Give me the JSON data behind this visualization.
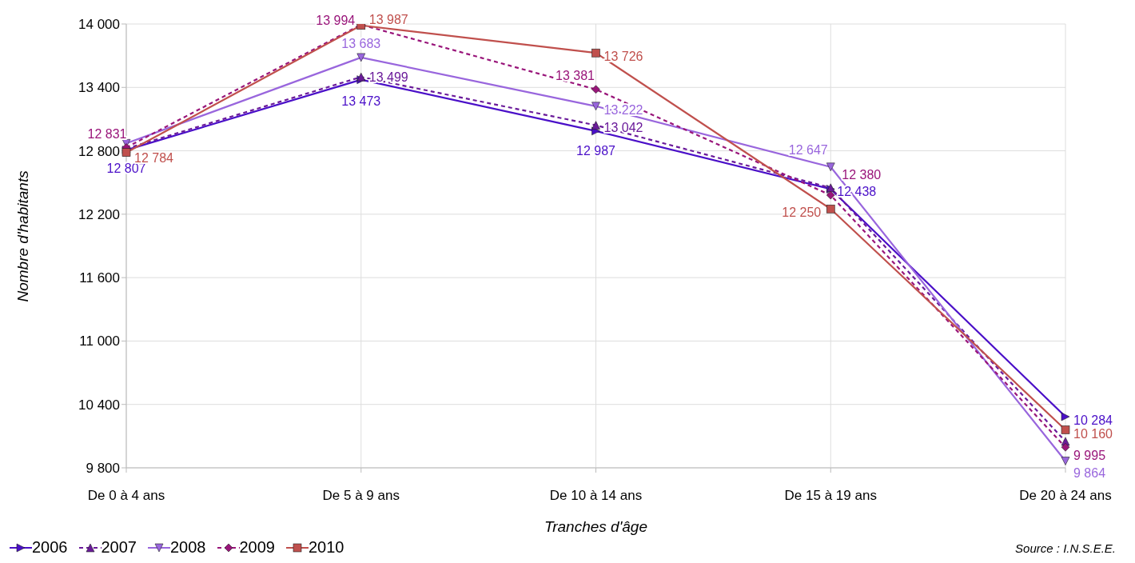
{
  "chart_data": {
    "type": "line",
    "xlabel": "Tranches d'âge",
    "ylabel": "Nombre d'habitants",
    "categories": [
      "De 0 à 4 ans",
      "De 5 à 9 ans",
      "De 10 à 14 ans",
      "De 15 à 19 ans",
      "De 20 à 24 ans"
    ],
    "series": [
      {
        "name": "2006",
        "color": "#4a0fc8",
        "marker": "triangle-right",
        "line_style": "solid",
        "values": [
          12807,
          13473,
          12987,
          12438,
          10284
        ],
        "value_labels": [
          "12 807",
          "13 473",
          "12 987",
          "12 438",
          "10 284"
        ]
      },
      {
        "name": "2007",
        "color": "#6a1a9a",
        "marker": "triangle",
        "line_style": "dashed",
        "values": [
          12820,
          13499,
          13042,
          12450,
          10050
        ],
        "value_labels": [
          null,
          "13 499",
          "13 042",
          null,
          null
        ]
      },
      {
        "name": "2008",
        "color": "#9966dd",
        "marker": "triangle-down",
        "line_style": "solid",
        "values": [
          12870,
          13683,
          13222,
          12647,
          9864
        ],
        "value_labels": [
          null,
          "13 683",
          "13 222",
          "12 647",
          "9 864"
        ]
      },
      {
        "name": "2009",
        "color": "#99157a",
        "marker": "diamond",
        "line_style": "dashed",
        "values": [
          12831,
          13994,
          13381,
          12380,
          9995
        ],
        "value_labels": [
          "12 831",
          "13 994",
          "13 381",
          "12 380",
          "9 995"
        ]
      },
      {
        "name": "2010",
        "color": "#c0504d",
        "marker": "square",
        "line_style": "solid",
        "values": [
          12784,
          13987,
          13726,
          12250,
          10160
        ],
        "value_labels": [
          "12 784",
          "13 987",
          "13 726",
          "12 250",
          "10 160"
        ]
      }
    ],
    "ylim": [
      9800,
      14000
    ],
    "yticks": [
      {
        "value": 9800,
        "label": "9 800"
      },
      {
        "value": 10400,
        "label": "10 400"
      },
      {
        "value": 11000,
        "label": "11 000"
      },
      {
        "value": 11600,
        "label": "11 600"
      },
      {
        "value": 12200,
        "label": "12 200"
      },
      {
        "value": 12800,
        "label": "12 800"
      },
      {
        "value": 13400,
        "label": "13 400"
      },
      {
        "value": 14000,
        "label": "14 000"
      }
    ],
    "grid": true,
    "legend": "bottom left",
    "annotations": [
      "Source : I.N.S.E.E."
    ]
  }
}
